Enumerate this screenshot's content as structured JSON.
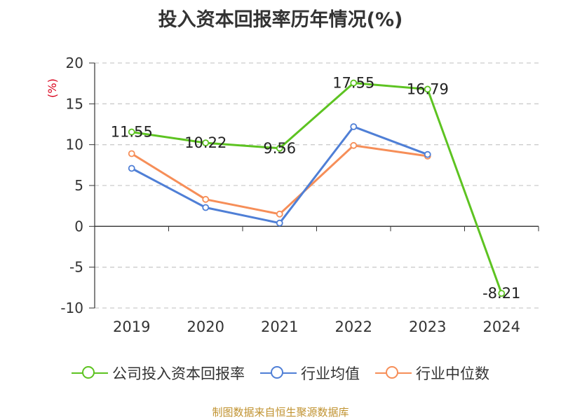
{
  "chart_data": {
    "type": "line",
    "title": "投入资本回报率历年情况(%)",
    "ylabel": "(%)",
    "xlabel": "",
    "categories": [
      "2019",
      "2020",
      "2021",
      "2022",
      "2023",
      "2024"
    ],
    "ylim": [
      -10,
      20
    ],
    "yticks": [
      "20",
      "15",
      "10",
      "5",
      "0",
      "-5",
      "-10"
    ],
    "grid": true,
    "legend_position": "bottom",
    "series": [
      {
        "name": "公司投入资本回报率",
        "color": "#5dc321",
        "values": [
          11.55,
          10.22,
          9.56,
          17.55,
          16.79,
          -8.21
        ],
        "labels": [
          "11.55",
          "10.22",
          "9.56",
          "17.55",
          "16.79",
          "-8.21"
        ]
      },
      {
        "name": "行业均值",
        "color": "#4f7fd6",
        "values": [
          7.1,
          2.3,
          0.4,
          12.2,
          8.8,
          null
        ]
      },
      {
        "name": "行业中位数",
        "color": "#f68e58",
        "values": [
          8.9,
          3.3,
          1.5,
          9.9,
          8.6,
          null
        ]
      }
    ]
  },
  "footer": {
    "source": "制图数据来自恒生聚源数据库"
  }
}
